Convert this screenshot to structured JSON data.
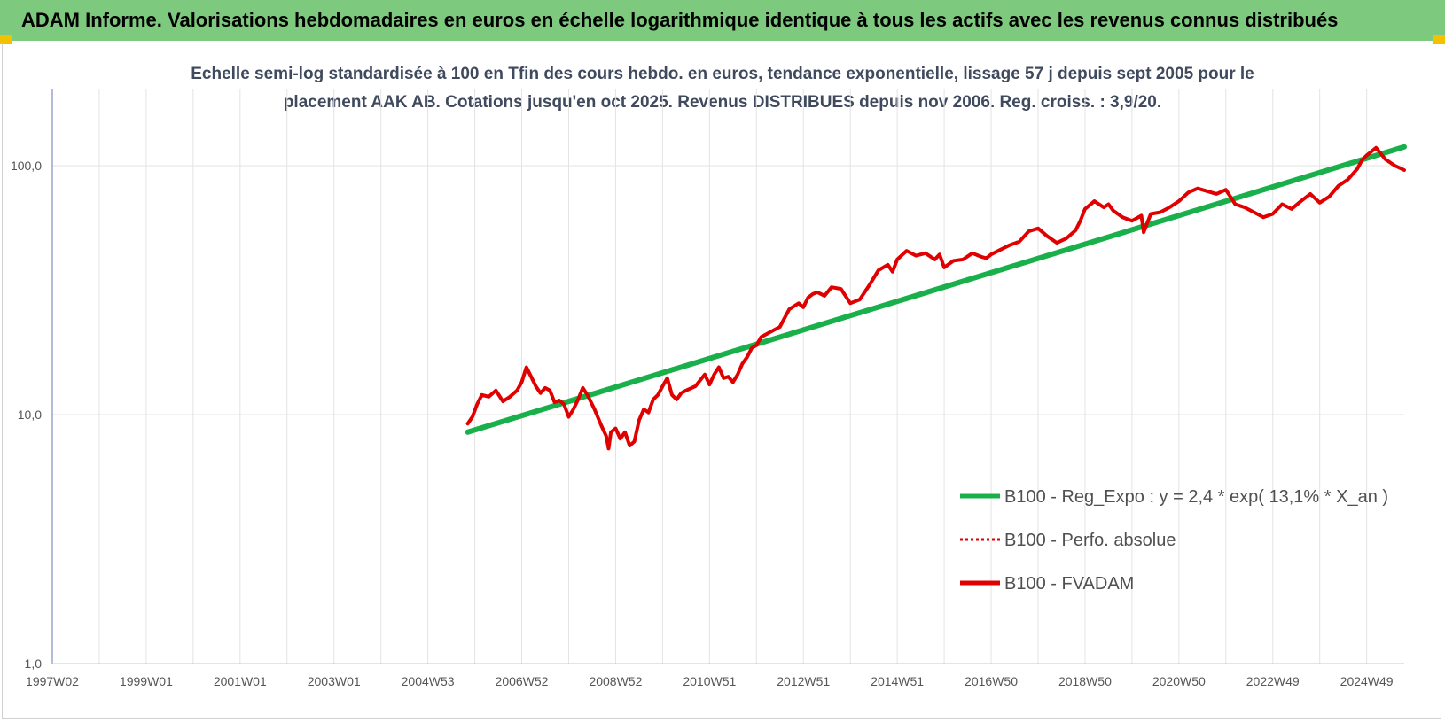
{
  "banner": {
    "title": "ADAM Informe. Valorisations hebdomadaires en euros en échelle logarithmique identique à tous les actifs avec les revenus connus distribués"
  },
  "colors": {
    "banner": "#7dc97d",
    "reg_line": "#19b04b",
    "fvadam_line": "#e00000",
    "perfo_line": "#e00000",
    "gridline": "#e3e3e3",
    "axis": "#7f8fc0"
  },
  "chart_data": {
    "type": "line",
    "title": "Echelle semi-log standardisée à 100 en Tfin des cours hebdo. en euros, tendance exponentielle, lissage 57 j depuis sept 2005 pour le placement AAK AB. Cotations jusqu'en oct 2025. Revenus DISTRIBUES depuis nov 2006. Reg. croiss. : 3,9/20.",
    "xlabel": "",
    "ylabel": "",
    "y_scale": "log",
    "ylim": [
      1,
      200
    ],
    "xlim": [
      1997.0,
      2025.8
    ],
    "grid": true,
    "legend_position": "right",
    "x_tick_labels": [
      {
        "x": 1997.0,
        "label": "1997W02"
      },
      {
        "x": 1999.0,
        "label": "1999W01"
      },
      {
        "x": 2001.0,
        "label": "2001W01"
      },
      {
        "x": 2003.0,
        "label": "2003W01"
      },
      {
        "x": 2005.0,
        "label": "2004W53"
      },
      {
        "x": 2007.0,
        "label": "2006W52"
      },
      {
        "x": 2009.0,
        "label": "2008W52"
      },
      {
        "x": 2011.0,
        "label": "2010W51"
      },
      {
        "x": 2013.0,
        "label": "2012W51"
      },
      {
        "x": 2015.0,
        "label": "2014W51"
      },
      {
        "x": 2017.0,
        "label": "2016W50"
      },
      {
        "x": 2019.0,
        "label": "2018W50"
      },
      {
        "x": 2021.0,
        "label": "2020W50"
      },
      {
        "x": 2023.0,
        "label": "2022W49"
      },
      {
        "x": 2025.0,
        "label": "2024W49"
      }
    ],
    "y_tick_labels": [
      {
        "y": 1,
        "label": "1,0"
      },
      {
        "y": 10,
        "label": "10,0"
      },
      {
        "y": 100,
        "label": "100,0"
      }
    ],
    "series": [
      {
        "name": "B100 - Reg_Expo : y = 2,4 * exp( 13,1% *  X_an )",
        "style": "solid-thick",
        "x": [
          2005.85,
          2025.8
        ],
        "y": [
          8.5,
          119
        ]
      },
      {
        "name": "B100 - Perfo. absolue",
        "style": "dotted",
        "x": [],
        "y": []
      },
      {
        "name": "B100 - FVADAM",
        "style": "solid",
        "x": [
          2005.85,
          2005.95,
          2006.05,
          2006.15,
          2006.3,
          2006.45,
          2006.6,
          2006.75,
          2006.9,
          2007.0,
          2007.1,
          2007.2,
          2007.3,
          2007.4,
          2007.5,
          2007.6,
          2007.7,
          2007.8,
          2007.9,
          2008.0,
          2008.1,
          2008.2,
          2008.3,
          2008.4,
          2008.55,
          2008.7,
          2008.8,
          2008.85,
          2008.9,
          2009.0,
          2009.1,
          2009.2,
          2009.3,
          2009.4,
          2009.5,
          2009.6,
          2009.7,
          2009.8,
          2009.9,
          2010.0,
          2010.1,
          2010.2,
          2010.3,
          2010.4,
          2010.5,
          2010.7,
          2010.9,
          2011.0,
          2011.1,
          2011.2,
          2011.3,
          2011.4,
          2011.5,
          2011.6,
          2011.7,
          2011.8,
          2011.9,
          2012.0,
          2012.1,
          2012.3,
          2012.5,
          2012.7,
          2012.9,
          2013.0,
          2013.1,
          2013.2,
          2013.3,
          2013.45,
          2013.6,
          2013.8,
          2014.0,
          2014.2,
          2014.4,
          2014.6,
          2014.8,
          2014.9,
          2015.0,
          2015.2,
          2015.4,
          2015.6,
          2015.8,
          2015.9,
          2016.0,
          2016.2,
          2016.4,
          2016.6,
          2016.8,
          2016.9,
          2017.0,
          2017.2,
          2017.4,
          2017.6,
          2017.8,
          2018.0,
          2018.2,
          2018.4,
          2018.6,
          2018.8,
          2018.9,
          2019.0,
          2019.2,
          2019.4,
          2019.5,
          2019.6,
          2019.8,
          2020.0,
          2020.2,
          2020.25,
          2020.4,
          2020.6,
          2020.8,
          2021.0,
          2021.2,
          2021.4,
          2021.6,
          2021.8,
          2022.0,
          2022.2,
          2022.4,
          2022.6,
          2022.8,
          2023.0,
          2023.2,
          2023.4,
          2023.6,
          2023.8,
          2024.0,
          2024.2,
          2024.4,
          2024.6,
          2024.8,
          2024.9,
          2025.0,
          2025.2,
          2025.4,
          2025.6,
          2025.8
        ],
        "y": [
          9.2,
          9.8,
          11.0,
          12.0,
          11.8,
          12.5,
          11.3,
          11.8,
          12.5,
          13.5,
          15.5,
          14.2,
          13.0,
          12.2,
          12.8,
          12.5,
          11.2,
          11.4,
          11.0,
          9.8,
          10.5,
          11.5,
          12.8,
          12.0,
          10.5,
          9.0,
          8.2,
          7.3,
          8.5,
          8.8,
          8.0,
          8.5,
          7.5,
          7.8,
          9.5,
          10.5,
          10.2,
          11.5,
          12.0,
          13.0,
          14.0,
          12.0,
          11.5,
          12.2,
          12.5,
          13.0,
          14.5,
          13.2,
          14.5,
          15.5,
          14.0,
          14.2,
          13.5,
          14.5,
          16.0,
          17.0,
          18.5,
          19.0,
          20.5,
          21.5,
          22.5,
          26.5,
          28.0,
          27.0,
          29.5,
          30.5,
          31.0,
          30.0,
          32.5,
          32.0,
          28.0,
          29.0,
          33.0,
          38.0,
          40.0,
          37.5,
          42.0,
          45.5,
          43.5,
          44.5,
          42.0,
          44.0,
          39.0,
          41.5,
          42.0,
          44.5,
          43.0,
          42.5,
          44.0,
          46.0,
          48.0,
          49.5,
          54.5,
          56.0,
          52.0,
          49.0,
          51.0,
          55.0,
          60.0,
          67.0,
          72.0,
          68.0,
          70.0,
          66.0,
          62.0,
          60.0,
          63.0,
          54.0,
          64.0,
          65.0,
          68.0,
          72.0,
          78.0,
          81.0,
          79.0,
          77.0,
          80.0,
          70.0,
          68.0,
          65.0,
          62.0,
          64.0,
          70.0,
          67.0,
          72.0,
          77.0,
          71.0,
          75.0,
          83.0,
          88.0,
          97.0,
          105.0,
          110.0,
          118.0,
          106.0,
          100.0,
          96.0
        ]
      }
    ]
  }
}
